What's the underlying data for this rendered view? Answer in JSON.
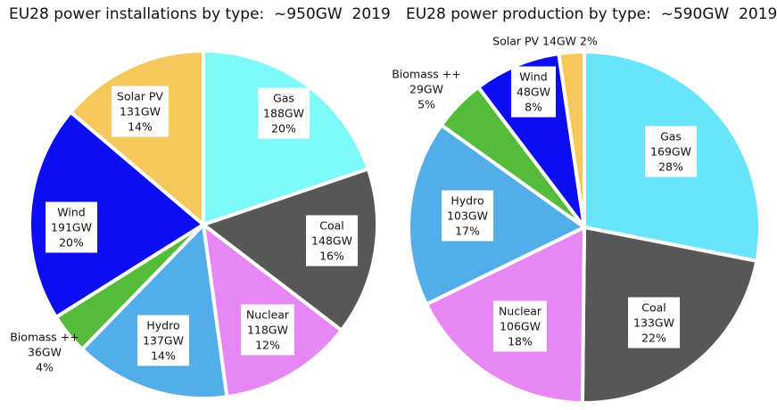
{
  "chart_data": [
    {
      "type": "pie",
      "title": "EU28 power installations by type:  ~950GW  2019",
      "unit": "GW",
      "slices": [
        {
          "name": "Gas",
          "value": 188,
          "value_label": "188GW",
          "pct_label": "20%",
          "color": "#7ffafc"
        },
        {
          "name": "Coal",
          "value": 148,
          "value_label": "148GW",
          "pct_label": "16%",
          "color": "#575757"
        },
        {
          "name": "Nuclear",
          "value": 118,
          "value_label": "118GW",
          "pct_label": "12%",
          "color": "#e687f5"
        },
        {
          "name": "Hydro",
          "value": 137,
          "value_label": "137GW",
          "pct_label": "14%",
          "color": "#52ade9"
        },
        {
          "name": "Biomass ++",
          "value": 36,
          "value_label": "36GW",
          "pct_label": "4%",
          "color": "#55bb3b"
        },
        {
          "name": "Wind",
          "value": 191,
          "value_label": "191GW",
          "pct_label": "20%",
          "color": "#0a0ef0"
        },
        {
          "name": "Solar PV",
          "value": 131,
          "value_label": "131GW",
          "pct_label": "14%",
          "color": "#f6c85b"
        }
      ]
    },
    {
      "type": "pie",
      "title": "EU28 power production by type:  ~590GW  2019",
      "unit": "GW",
      "slices": [
        {
          "name": "Gas",
          "value": 169,
          "value_label": "169GW",
          "pct_label": "28%",
          "color": "#69e5fb"
        },
        {
          "name": "Coal",
          "value": 133,
          "value_label": "133GW",
          "pct_label": "22%",
          "color": "#575757"
        },
        {
          "name": "Nuclear",
          "value": 106,
          "value_label": "106GW",
          "pct_label": "18%",
          "color": "#e687f5"
        },
        {
          "name": "Hydro",
          "value": 103,
          "value_label": "103GW",
          "pct_label": "17%",
          "color": "#52ade9"
        },
        {
          "name": "Biomass ++",
          "value": 29,
          "value_label": "29GW",
          "pct_label": "5%",
          "color": "#55bb3b"
        },
        {
          "name": "Wind",
          "value": 48,
          "value_label": "48GW",
          "pct_label": "8%",
          "color": "#0a0ef0"
        },
        {
          "name": "Solar PV",
          "value": 14,
          "value_label": "14GW",
          "pct_label": "2%",
          "color": "#f6c85b"
        }
      ]
    }
  ]
}
